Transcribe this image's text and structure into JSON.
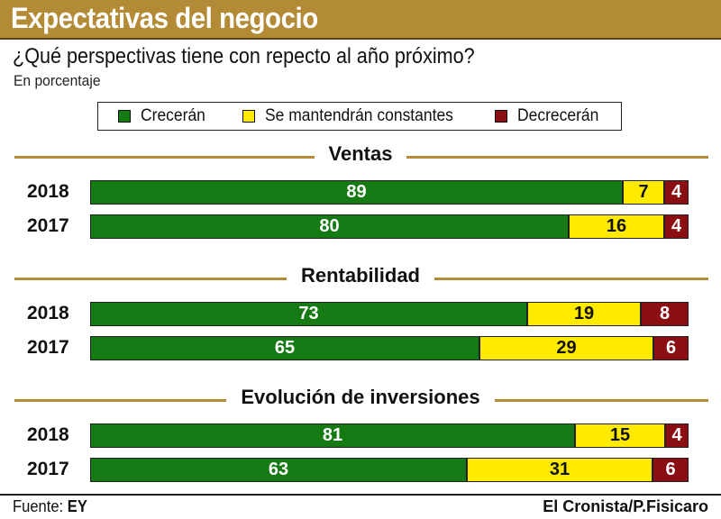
{
  "header": {
    "title": "Expectativas del negocio",
    "subtitle": "¿Qué perspectivas tiene con repecto al año próximo?",
    "unit": "En porcentaje"
  },
  "legend": {
    "grow": "Crecerán",
    "constant": "Se mantendrán constantes",
    "decrease": "Decrecerán"
  },
  "colors": {
    "grow": "#157a14",
    "constant": "#ffea00",
    "decrease": "#8a0e12",
    "accent": "#b38a35"
  },
  "chart_data": {
    "type": "bar",
    "orientation": "horizontal",
    "stacked": true,
    "title": "Expectativas del negocio",
    "subtitle": "¿Qué perspectivas tiene con repecto al año próximo?",
    "unit": "En porcentaje",
    "series_names": [
      "Crecerán",
      "Se mantendrán constantes",
      "Decrecerán"
    ],
    "sections": [
      {
        "title": "Ventas",
        "rows": [
          {
            "year": "2018",
            "values": [
              89,
              7,
              4
            ]
          },
          {
            "year": "2017",
            "values": [
              80,
              16,
              4
            ]
          }
        ]
      },
      {
        "title": "Rentabilidad",
        "rows": [
          {
            "year": "2018",
            "values": [
              73,
              19,
              8
            ]
          },
          {
            "year": "2017",
            "values": [
              65,
              29,
              6
            ]
          }
        ]
      },
      {
        "title": "Evolución de inversiones",
        "rows": [
          {
            "year": "2018",
            "values": [
              81,
              15,
              4
            ]
          },
          {
            "year": "2017",
            "values": [
              63,
              31,
              6
            ]
          }
        ]
      }
    ],
    "xlim": [
      0,
      100
    ]
  },
  "footer": {
    "source_label": "Fuente:",
    "source_value": "EY",
    "credit": "El Cronista/P.Fisicaro"
  }
}
